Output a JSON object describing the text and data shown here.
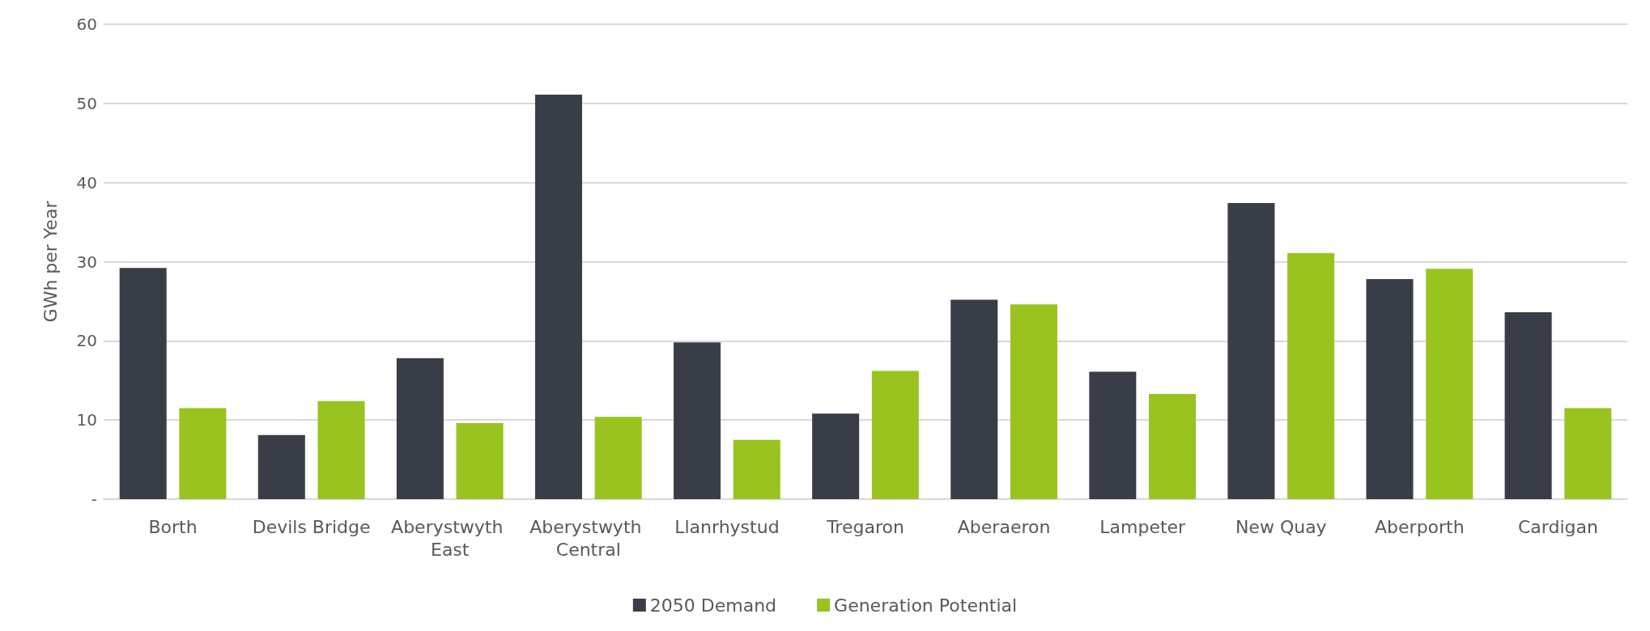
{
  "chart_data": {
    "type": "bar",
    "ylabel": "GWh per Year",
    "categories": [
      "Borth",
      "Devils Bridge",
      "Aberystwyth East",
      "Aberystwyth Central",
      "Llanrhystud",
      "Tregaron",
      "Aberaeron",
      "Lampeter",
      "New Quay",
      "Aberporth",
      "Cardigan"
    ],
    "series": [
      {
        "name": "2050 Demand",
        "color": "#383d48",
        "values": [
          29.2,
          8.1,
          17.8,
          51.1,
          19.8,
          10.8,
          25.2,
          16.1,
          37.4,
          27.8,
          23.6
        ]
      },
      {
        "name": "Generation Potential",
        "color": "#99c31f",
        "values": [
          11.5,
          12.4,
          9.6,
          10.4,
          7.5,
          16.2,
          24.6,
          13.3,
          31.1,
          29.1,
          11.5
        ]
      }
    ],
    "ylim": [
      0,
      60
    ],
    "yticks": [
      {
        "value": 0,
        "label": "-"
      },
      10,
      20,
      30,
      40,
      50,
      60
    ],
    "grid": "y",
    "legend": "bottom"
  }
}
